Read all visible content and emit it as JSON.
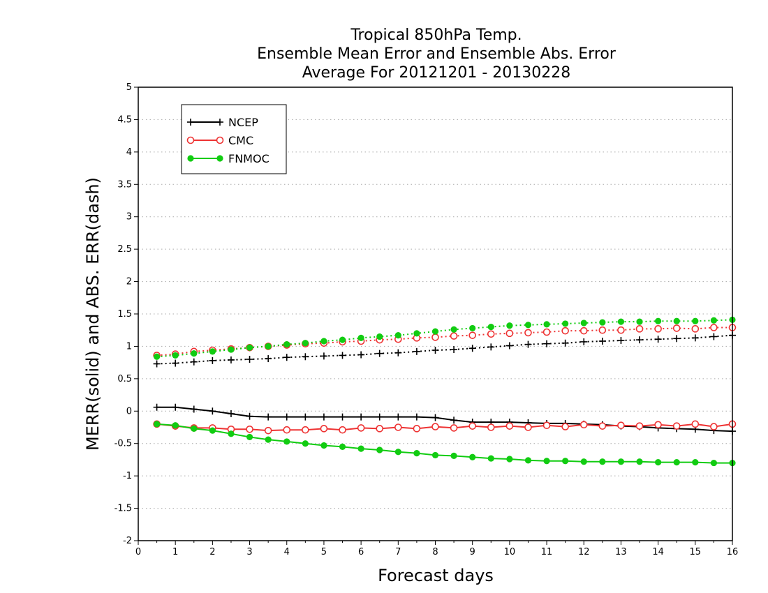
{
  "chart_data": {
    "type": "line",
    "title_lines": [
      "Tropical 850hPa Temp.",
      "Ensemble Mean Error and Ensemble Abs. Error",
      "Average For 20121201 - 20130228"
    ],
    "xlabel": "Forecast days",
    "ylabel": "MERR(solid) and ABS. ERR(dash)",
    "xlim": [
      0,
      16
    ],
    "ylim": [
      -2,
      5
    ],
    "x_ticks": [
      "0",
      "1",
      "2",
      "3",
      "4",
      "5",
      "6",
      "7",
      "8",
      "9",
      "10",
      "11",
      "12",
      "13",
      "14",
      "15",
      "16"
    ],
    "y_ticks": [
      "5",
      "4.5",
      "4",
      "3.5",
      "3",
      "2.5",
      "2",
      "1.5",
      "1",
      "0.5",
      "0",
      "-0.5",
      "-1",
      "-1.5",
      "-2"
    ],
    "grid": true,
    "legend": {
      "position": "top-left",
      "entries": [
        "NCEP",
        "CMC",
        "FNMOC"
      ]
    },
    "x": [
      0.5,
      1,
      1.5,
      2,
      2.5,
      3,
      3.5,
      4,
      4.5,
      5,
      5.5,
      6,
      6.5,
      7,
      7.5,
      8,
      8.5,
      9,
      9.5,
      10,
      10.5,
      11,
      11.5,
      12,
      12.5,
      13,
      13.5,
      14,
      14.5,
      15,
      15.5,
      16
    ],
    "series": [
      {
        "name": "NCEP",
        "color": "#000000",
        "marker": "plus",
        "merr": [
          0.06,
          0.06,
          0.03,
          0.0,
          -0.04,
          -0.08,
          -0.09,
          -0.09,
          -0.09,
          -0.09,
          -0.09,
          -0.09,
          -0.09,
          -0.09,
          -0.09,
          -0.1,
          -0.14,
          -0.17,
          -0.17,
          -0.17,
          -0.18,
          -0.19,
          -0.19,
          -0.2,
          -0.21,
          -0.23,
          -0.24,
          -0.26,
          -0.27,
          -0.28,
          -0.3,
          -0.31
        ],
        "abs_err": [
          0.73,
          0.74,
          0.76,
          0.78,
          0.79,
          0.8,
          0.81,
          0.83,
          0.84,
          0.85,
          0.86,
          0.87,
          0.89,
          0.9,
          0.92,
          0.94,
          0.95,
          0.97,
          0.99,
          1.01,
          1.03,
          1.04,
          1.05,
          1.07,
          1.08,
          1.09,
          1.1,
          1.11,
          1.12,
          1.13,
          1.15,
          1.17
        ]
      },
      {
        "name": "CMC",
        "color": "#ee3333",
        "marker": "open-circle",
        "merr": [
          -0.2,
          -0.23,
          -0.26,
          -0.26,
          -0.28,
          -0.28,
          -0.3,
          -0.29,
          -0.29,
          -0.27,
          -0.29,
          -0.26,
          -0.27,
          -0.25,
          -0.27,
          -0.24,
          -0.26,
          -0.23,
          -0.25,
          -0.23,
          -0.25,
          -0.22,
          -0.24,
          -0.21,
          -0.23,
          -0.22,
          -0.23,
          -0.21,
          -0.23,
          -0.2,
          -0.24,
          -0.2
        ],
        "abs_err": [
          0.86,
          0.88,
          0.92,
          0.94,
          0.96,
          0.98,
          1.0,
          1.02,
          1.04,
          1.05,
          1.07,
          1.08,
          1.1,
          1.11,
          1.13,
          1.14,
          1.16,
          1.17,
          1.19,
          1.2,
          1.21,
          1.22,
          1.24,
          1.24,
          1.25,
          1.25,
          1.27,
          1.27,
          1.28,
          1.27,
          1.29,
          1.29
        ]
      },
      {
        "name": "FNMOC",
        "color": "#11cc11",
        "marker": "filled-circle",
        "merr": [
          -0.2,
          -0.22,
          -0.27,
          -0.3,
          -0.35,
          -0.4,
          -0.44,
          -0.47,
          -0.5,
          -0.53,
          -0.55,
          -0.58,
          -0.6,
          -0.63,
          -0.65,
          -0.68,
          -0.69,
          -0.71,
          -0.73,
          -0.74,
          -0.76,
          -0.77,
          -0.77,
          -0.78,
          -0.78,
          -0.78,
          -0.78,
          -0.79,
          -0.79,
          -0.79,
          -0.8,
          -0.8
        ],
        "abs_err": [
          0.84,
          0.86,
          0.89,
          0.92,
          0.95,
          0.98,
          1.0,
          1.03,
          1.05,
          1.08,
          1.1,
          1.13,
          1.15,
          1.17,
          1.2,
          1.23,
          1.26,
          1.28,
          1.3,
          1.32,
          1.33,
          1.34,
          1.35,
          1.36,
          1.37,
          1.38,
          1.38,
          1.39,
          1.39,
          1.39,
          1.4,
          1.41
        ]
      }
    ]
  }
}
